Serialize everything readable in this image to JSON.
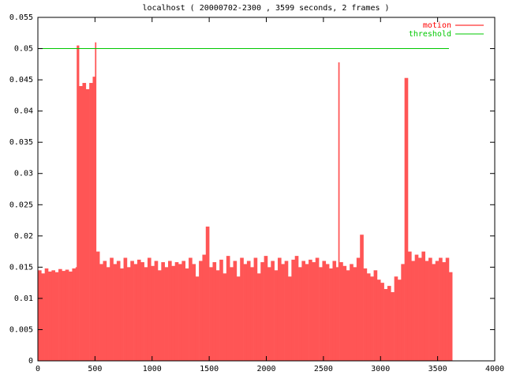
{
  "chart_data": {
    "type": "impulse",
    "title": "localhost ( 20000702-2300 , 3599 seconds, 2 frames )",
    "xlim": [
      0,
      4000
    ],
    "xticks": [
      0,
      500,
      1000,
      1500,
      2000,
      2500,
      3000,
      3500,
      4000
    ],
    "ylim": [
      0,
      0.055
    ],
    "yticks": [
      0,
      0.005,
      0.01,
      0.015,
      0.02,
      0.025,
      0.03,
      0.035,
      0.04,
      0.045,
      0.05,
      0.055
    ],
    "legend": "top-right",
    "series": [
      {
        "name": "motion",
        "color": "#ff5555",
        "legend_color": "#ff0000",
        "style": "impulses",
        "x": [
          0,
          30,
          60,
          90,
          120,
          150,
          180,
          210,
          240,
          270,
          300,
          330,
          340,
          360,
          390,
          420,
          450,
          480,
          500,
          510,
          540,
          570,
          600,
          630,
          660,
          690,
          720,
          750,
          780,
          810,
          840,
          870,
          900,
          930,
          960,
          990,
          1020,
          1050,
          1080,
          1110,
          1140,
          1170,
          1200,
          1230,
          1260,
          1290,
          1320,
          1350,
          1380,
          1410,
          1440,
          1470,
          1500,
          1530,
          1560,
          1590,
          1620,
          1650,
          1680,
          1710,
          1740,
          1770,
          1800,
          1830,
          1860,
          1890,
          1920,
          1950,
          1980,
          2010,
          2040,
          2070,
          2100,
          2130,
          2160,
          2190,
          2220,
          2250,
          2280,
          2310,
          2340,
          2370,
          2400,
          2430,
          2460,
          2490,
          2520,
          2550,
          2580,
          2610,
          2630,
          2640,
          2670,
          2700,
          2730,
          2760,
          2790,
          2820,
          2850,
          2880,
          2910,
          2940,
          2970,
          3000,
          3030,
          3060,
          3090,
          3120,
          3150,
          3180,
          3210,
          3240,
          3270,
          3300,
          3330,
          3360,
          3390,
          3420,
          3450,
          3480,
          3510,
          3540,
          3570,
          3599
        ],
        "values": [
          0.0145,
          0.014,
          0.0148,
          0.0143,
          0.0145,
          0.0142,
          0.0147,
          0.0144,
          0.0146,
          0.0143,
          0.0148,
          0.015,
          0.0505,
          0.044,
          0.0445,
          0.0435,
          0.0445,
          0.0455,
          0.051,
          0.0175,
          0.0155,
          0.016,
          0.015,
          0.0165,
          0.0155,
          0.016,
          0.0148,
          0.0165,
          0.015,
          0.016,
          0.0155,
          0.0162,
          0.0158,
          0.015,
          0.0165,
          0.0152,
          0.016,
          0.0145,
          0.0158,
          0.015,
          0.016,
          0.0152,
          0.0158,
          0.0155,
          0.016,
          0.0148,
          0.0165,
          0.0155,
          0.0135,
          0.016,
          0.017,
          0.0215,
          0.015,
          0.0158,
          0.0145,
          0.0162,
          0.014,
          0.0168,
          0.015,
          0.016,
          0.0135,
          0.0165,
          0.0155,
          0.016,
          0.015,
          0.0165,
          0.014,
          0.0158,
          0.0168,
          0.015,
          0.016,
          0.0145,
          0.0165,
          0.0155,
          0.016,
          0.0135,
          0.0162,
          0.0168,
          0.015,
          0.016,
          0.0155,
          0.0162,
          0.0158,
          0.0165,
          0.015,
          0.016,
          0.0155,
          0.0148,
          0.016,
          0.015,
          0.0478,
          0.0158,
          0.0152,
          0.0145,
          0.0155,
          0.015,
          0.0165,
          0.0202,
          0.0148,
          0.014,
          0.0135,
          0.0145,
          0.013,
          0.0125,
          0.0115,
          0.012,
          0.011,
          0.0135,
          0.013,
          0.0155,
          0.0453,
          0.0175,
          0.016,
          0.017,
          0.0165,
          0.0175,
          0.016,
          0.0165,
          0.0155,
          0.016,
          0.0165,
          0.0158,
          0.0165,
          0.0142
        ]
      },
      {
        "name": "threshold",
        "color": "#00c800",
        "style": "lines",
        "x": [
          0,
          3599
        ],
        "values": [
          0.05,
          0.05
        ]
      }
    ]
  }
}
